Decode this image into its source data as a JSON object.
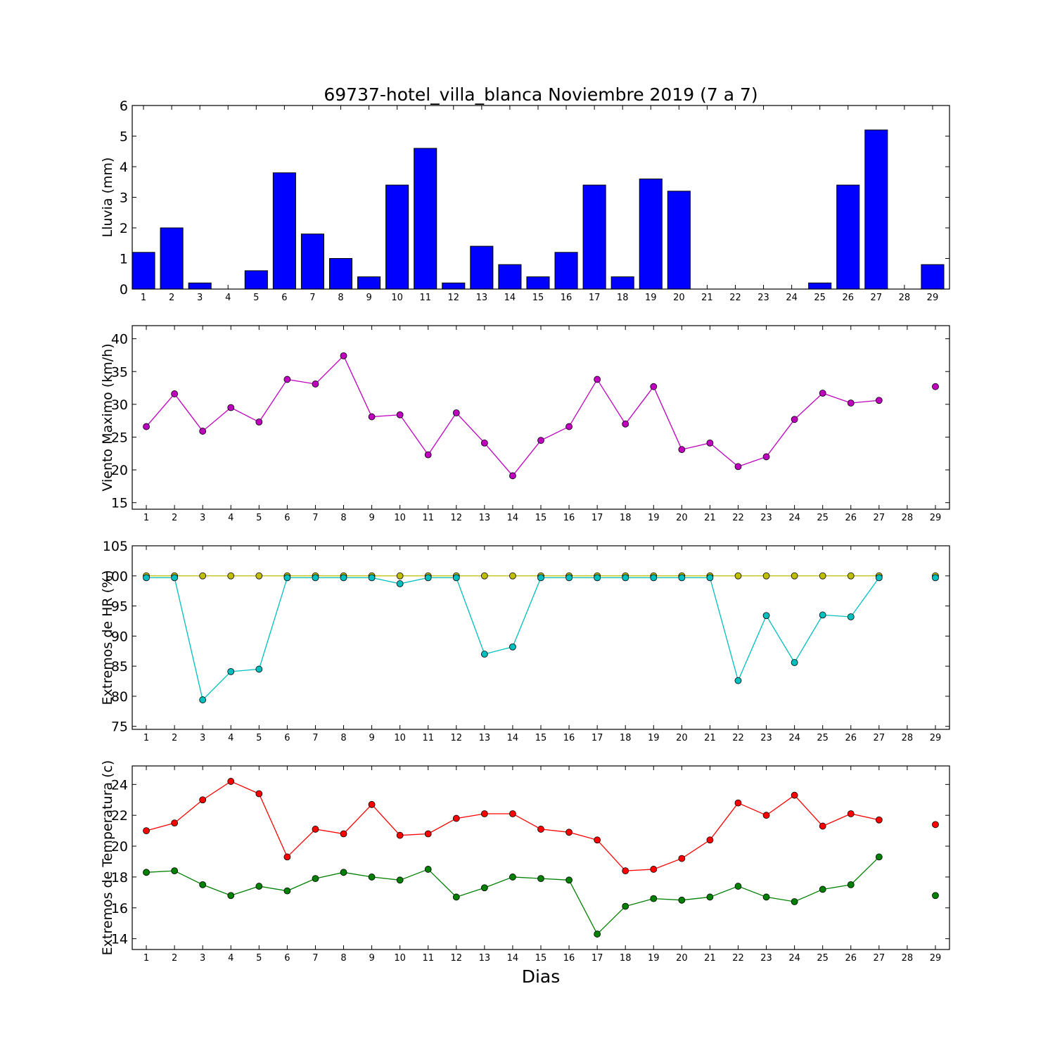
{
  "title": "69737-hotel_villa_blanca Noviembre 2019  (7 a 7)",
  "xlabel": "Dias",
  "chart_data": [
    {
      "type": "bar",
      "ylabel": "Lluvia (mm)",
      "ylim": [
        0,
        6
      ],
      "yticks": [
        "0",
        "1",
        "2",
        "3",
        "4",
        "5",
        "6"
      ],
      "xticks": [
        "1",
        "2",
        "3",
        "4",
        "5",
        "6",
        "7",
        "8",
        "9",
        "10",
        "11",
        "12",
        "13",
        "14",
        "15",
        "16",
        "17",
        "18",
        "19",
        "20",
        "21",
        "22",
        "23",
        "24",
        "25",
        "26",
        "27",
        "28",
        "29"
      ],
      "xlim": [
        0.6,
        29.6
      ],
      "bar_width": 0.8,
      "series": [
        {
          "color": "#0000ff",
          "x": [
            1,
            2,
            3,
            4,
            5,
            6,
            7,
            8,
            9,
            10,
            11,
            12,
            13,
            14,
            15,
            16,
            17,
            18,
            19,
            20,
            21,
            22,
            23,
            24,
            25,
            26,
            27,
            28,
            29
          ],
          "values": [
            1.2,
            2.0,
            0.2,
            0.0,
            0.6,
            3.8,
            1.8,
            1.0,
            0.4,
            3.4,
            4.6,
            0.2,
            1.4,
            0.8,
            0.4,
            1.2,
            3.4,
            0.4,
            3.6,
            3.2,
            0.0,
            0.0,
            0.0,
            0.0,
            0.2,
            3.4,
            5.2,
            0.0,
            0.8
          ]
        }
      ]
    },
    {
      "type": "line",
      "ylabel": "Viento Maximo (km/h)",
      "ylim": [
        14,
        42
      ],
      "yticks": [
        "15",
        "20",
        "25",
        "30",
        "35",
        "40"
      ],
      "xticks": [
        "1",
        "2",
        "3",
        "4",
        "5",
        "6",
        "7",
        "8",
        "9",
        "10",
        "11",
        "12",
        "13",
        "14",
        "15",
        "16",
        "17",
        "18",
        "19",
        "20",
        "21",
        "22",
        "23",
        "24",
        "25",
        "26",
        "27",
        "28",
        "29"
      ],
      "xlim": [
        0.5,
        29.5
      ],
      "series": [
        {
          "color": "#bf00bf",
          "x": [
            1,
            2,
            3,
            4,
            5,
            6,
            7,
            8,
            9,
            10,
            11,
            12,
            13,
            14,
            15,
            16,
            17,
            18,
            19,
            20,
            21,
            22,
            23,
            24,
            25,
            26,
            27,
            28,
            29
          ],
          "values": [
            26.6,
            31.6,
            25.9,
            29.5,
            27.3,
            33.8,
            33.1,
            37.4,
            28.1,
            28.4,
            22.3,
            28.7,
            24.1,
            19.1,
            24.5,
            26.6,
            33.8,
            27.0,
            32.7,
            23.1,
            24.1,
            20.5,
            22.0,
            27.7,
            31.7,
            30.2,
            30.6,
            null,
            32.7
          ]
        }
      ]
    },
    {
      "type": "line",
      "ylabel": "Extremos de HR (%)",
      "ylim": [
        74.5,
        105
      ],
      "yticks": [
        "75",
        "80",
        "85",
        "90",
        "95",
        "100",
        "105"
      ],
      "xticks": [
        "1",
        "2",
        "3",
        "4",
        "5",
        "6",
        "7",
        "8",
        "9",
        "10",
        "11",
        "12",
        "13",
        "14",
        "15",
        "16",
        "17",
        "18",
        "19",
        "20",
        "21",
        "22",
        "23",
        "24",
        "25",
        "26",
        "27",
        "28",
        "29"
      ],
      "xlim": [
        0.5,
        29.5
      ],
      "series": [
        {
          "color": "#bfbf00",
          "x": [
            1,
            2,
            3,
            4,
            5,
            6,
            7,
            8,
            9,
            10,
            11,
            12,
            13,
            14,
            15,
            16,
            17,
            18,
            19,
            20,
            21,
            22,
            23,
            24,
            25,
            26,
            27,
            28,
            29
          ],
          "values": [
            100,
            100,
            100,
            100,
            100,
            100,
            100,
            100,
            100,
            100,
            100,
            100,
            100,
            100,
            100,
            100,
            100,
            100,
            100,
            100,
            100,
            100,
            100,
            100,
            100,
            100,
            100,
            null,
            100
          ]
        },
        {
          "color": "#00bfbf",
          "x": [
            1,
            2,
            3,
            4,
            5,
            6,
            7,
            8,
            9,
            10,
            11,
            12,
            13,
            14,
            15,
            16,
            17,
            18,
            19,
            20,
            21,
            22,
            23,
            24,
            25,
            26,
            27,
            28,
            29
          ],
          "values": [
            99.7,
            99.7,
            79.4,
            84.1,
            84.5,
            99.7,
            99.7,
            99.7,
            99.7,
            98.7,
            99.7,
            99.7,
            87.0,
            88.2,
            99.7,
            99.7,
            99.7,
            99.7,
            99.7,
            99.7,
            99.7,
            82.6,
            93.4,
            85.6,
            93.5,
            93.2,
            99.7,
            null,
            99.7
          ]
        }
      ]
    },
    {
      "type": "line",
      "ylabel": "Extremos de Temperatura (c)",
      "ylim": [
        13.3,
        25.2
      ],
      "yticks": [
        "14",
        "16",
        "18",
        "20",
        "22",
        "24"
      ],
      "xticks": [
        "1",
        "2",
        "3",
        "4",
        "5",
        "6",
        "7",
        "8",
        "9",
        "10",
        "11",
        "12",
        "13",
        "14",
        "15",
        "16",
        "17",
        "18",
        "19",
        "20",
        "21",
        "22",
        "23",
        "24",
        "25",
        "26",
        "27",
        "28",
        "29"
      ],
      "xlim": [
        0.5,
        29.5
      ],
      "series": [
        {
          "color": "#ff0000",
          "x": [
            1,
            2,
            3,
            4,
            5,
            6,
            7,
            8,
            9,
            10,
            11,
            12,
            13,
            14,
            15,
            16,
            17,
            18,
            19,
            20,
            21,
            22,
            23,
            24,
            25,
            26,
            27,
            28,
            29
          ],
          "values": [
            21.0,
            21.5,
            23.0,
            24.2,
            23.4,
            19.3,
            21.1,
            20.8,
            22.7,
            20.7,
            20.8,
            21.8,
            22.1,
            22.1,
            21.1,
            20.9,
            20.4,
            18.4,
            18.5,
            19.2,
            20.4,
            22.8,
            22.0,
            23.3,
            21.3,
            22.1,
            21.7,
            null,
            21.4
          ]
        },
        {
          "color": "#008000",
          "x": [
            1,
            2,
            3,
            4,
            5,
            6,
            7,
            8,
            9,
            10,
            11,
            12,
            13,
            14,
            15,
            16,
            17,
            18,
            19,
            20,
            21,
            22,
            23,
            24,
            25,
            26,
            27,
            28,
            29
          ],
          "values": [
            18.3,
            18.4,
            17.5,
            16.8,
            17.4,
            17.1,
            17.9,
            18.3,
            18.0,
            17.8,
            18.5,
            16.7,
            17.3,
            18.0,
            17.9,
            17.8,
            14.3,
            16.1,
            16.6,
            16.5,
            16.7,
            17.4,
            16.7,
            16.4,
            17.2,
            17.5,
            19.3,
            null,
            16.8
          ]
        }
      ]
    }
  ]
}
